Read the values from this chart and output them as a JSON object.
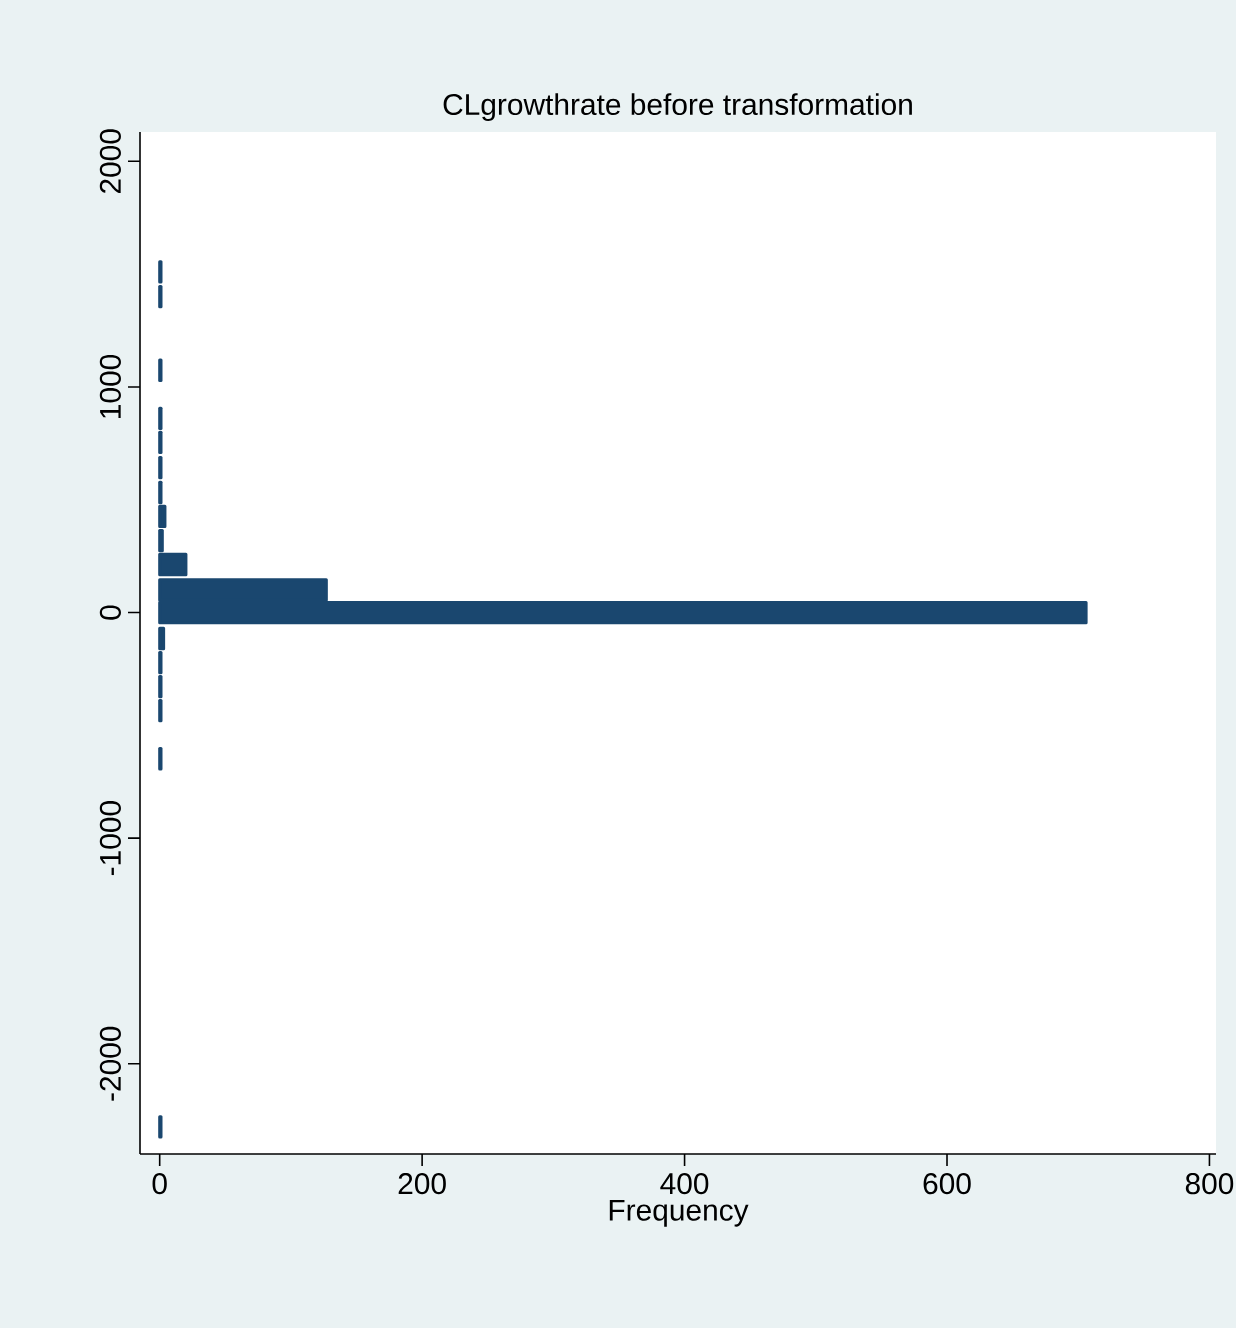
{
  "chart_data": {
    "type": "bar",
    "orientation": "horizontal",
    "title": "CLgrowthrate before transformation",
    "xlabel": "Frequency",
    "x": [
      1510,
      1400,
      1074,
      861,
      754,
      642,
      532,
      426,
      319,
      213,
      100,
      0,
      -115,
      -222,
      -328,
      -435,
      -648,
      -2280
    ],
    "values": [
      1,
      1,
      1,
      1,
      1,
      1,
      1,
      4,
      2,
      20,
      127,
      706,
      3,
      1,
      1,
      1,
      1,
      1
    ],
    "color": "#1a476f",
    "xlim": [
      -15,
      805
    ],
    "xticks": [
      0,
      200,
      400,
      600,
      800
    ],
    "ylim": [
      -2400,
      2130
    ],
    "yticks": [
      -2000,
      -1000,
      0,
      1000,
      2000
    ]
  }
}
